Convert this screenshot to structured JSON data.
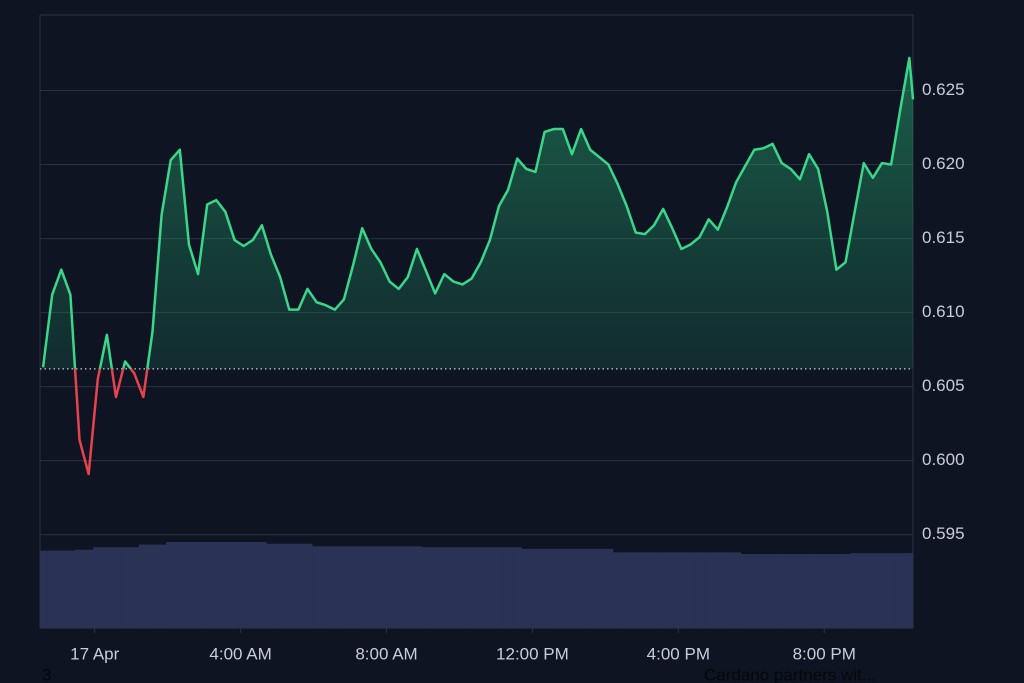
{
  "chart_data": {
    "type": "line",
    "x": [
      -85,
      -70,
      -55,
      -40,
      -25,
      -10,
      5,
      20,
      35,
      50,
      65,
      80,
      95,
      110,
      125,
      140,
      155,
      170,
      185,
      200,
      215,
      230,
      245,
      260,
      275,
      290,
      305,
      320,
      335,
      350,
      365,
      380,
      395,
      410,
      425,
      440,
      455,
      470,
      485,
      500,
      515,
      530,
      545,
      560,
      575,
      590,
      605,
      620,
      635,
      650,
      665,
      680,
      695,
      710,
      725,
      740,
      755,
      770,
      785,
      800,
      815,
      830,
      845,
      860,
      875,
      890,
      905,
      920,
      935,
      950,
      965,
      980,
      995,
      1010,
      1025,
      1040,
      1055,
      1070,
      1085,
      1100,
      1115,
      1130,
      1145,
      1160,
      1175,
      1190,
      1205,
      1220,
      1235,
      1250,
      1265,
      1280,
      1295,
      1310,
      1325,
      1340,
      1346
    ],
    "values": [
      0.6063,
      0.6112,
      0.6129,
      0.6112,
      0.6014,
      0.5991,
      0.6055,
      0.6085,
      0.6043,
      0.6067,
      0.6059,
      0.6043,
      0.6087,
      0.6166,
      0.6203,
      0.621,
      0.6146,
      0.6126,
      0.6173,
      0.6176,
      0.6168,
      0.6149,
      0.6145,
      0.6149,
      0.6159,
      0.6139,
      0.6124,
      0.6102,
      0.6102,
      0.6116,
      0.6107,
      0.6105,
      0.6102,
      0.6109,
      0.6132,
      0.6157,
      0.6143,
      0.6134,
      0.6121,
      0.6116,
      0.6124,
      0.6143,
      0.6128,
      0.6113,
      0.6126,
      0.6121,
      0.6119,
      0.6123,
      0.6134,
      0.6149,
      0.6172,
      0.6183,
      0.6204,
      0.6197,
      0.6195,
      0.6222,
      0.6224,
      0.6224,
      0.6207,
      0.6224,
      0.621,
      0.6205,
      0.62,
      0.6187,
      0.6172,
      0.6154,
      0.6153,
      0.6159,
      0.617,
      0.6157,
      0.6143,
      0.6146,
      0.6151,
      0.6163,
      0.6156,
      0.6171,
      0.6188,
      0.6199,
      0.621,
      0.6211,
      0.6214,
      0.6201,
      0.6197,
      0.619,
      0.6207,
      0.6197,
      0.6168,
      0.6129,
      0.6134,
      0.6168,
      0.6201,
      0.6191,
      0.6201,
      0.62,
      0.6237,
      0.6272,
      0.6244
    ],
    "color": "#3ad68a",
    "down_color": "#e8424f",
    "baseline": 0.6062,
    "volume": {
      "color": "#2a3256",
      "ylim": [
        0,
        100
      ],
      "values": [
        90,
        90,
        90,
        90,
        91,
        91,
        94,
        94,
        94,
        94,
        94,
        97,
        97,
        97,
        100,
        100,
        100,
        100,
        100,
        100,
        100,
        100,
        100,
        100,
        100,
        98,
        98,
        98,
        98,
        98,
        95,
        95,
        95,
        95,
        95,
        95,
        95,
        95,
        95,
        95,
        95,
        95,
        94,
        94,
        94,
        94,
        94,
        94,
        94,
        94,
        94,
        94,
        94,
        92,
        92,
        92,
        92,
        92,
        92,
        92,
        92,
        92,
        92,
        88,
        88,
        88,
        88,
        88,
        88,
        88,
        88,
        88,
        88,
        88,
        88,
        88,
        88,
        86,
        86,
        86,
        86,
        86,
        86,
        86,
        86,
        86,
        86,
        86,
        86,
        87,
        87,
        87,
        87,
        87,
        87,
        87,
        87,
        87
      ]
    },
    "xlim": [
      -90,
      1346
    ],
    "xticks": [
      {
        "value": 0,
        "label": "17 Apr"
      },
      {
        "value": 240,
        "label": "4:00 AM"
      },
      {
        "value": 480,
        "label": "8:00 AM"
      },
      {
        "value": 720,
        "label": "12:00 PM"
      },
      {
        "value": 960,
        "label": "4:00 PM"
      },
      {
        "value": 1200,
        "label": "8:00 PM"
      }
    ],
    "ylim": [
      0.5887,
      0.6301
    ],
    "yticks": [
      0.595,
      {
        "value": 0.6,
        "label": "0.600"
      },
      0.605,
      {
        "value": 0.61,
        "label": "0.610"
      },
      0.615,
      {
        "value": 0.62,
        "label": "0.620"
      },
      0.625
    ],
    "grid": true,
    "annotations": [
      "3",
      "Cardano partners wit..."
    ]
  }
}
